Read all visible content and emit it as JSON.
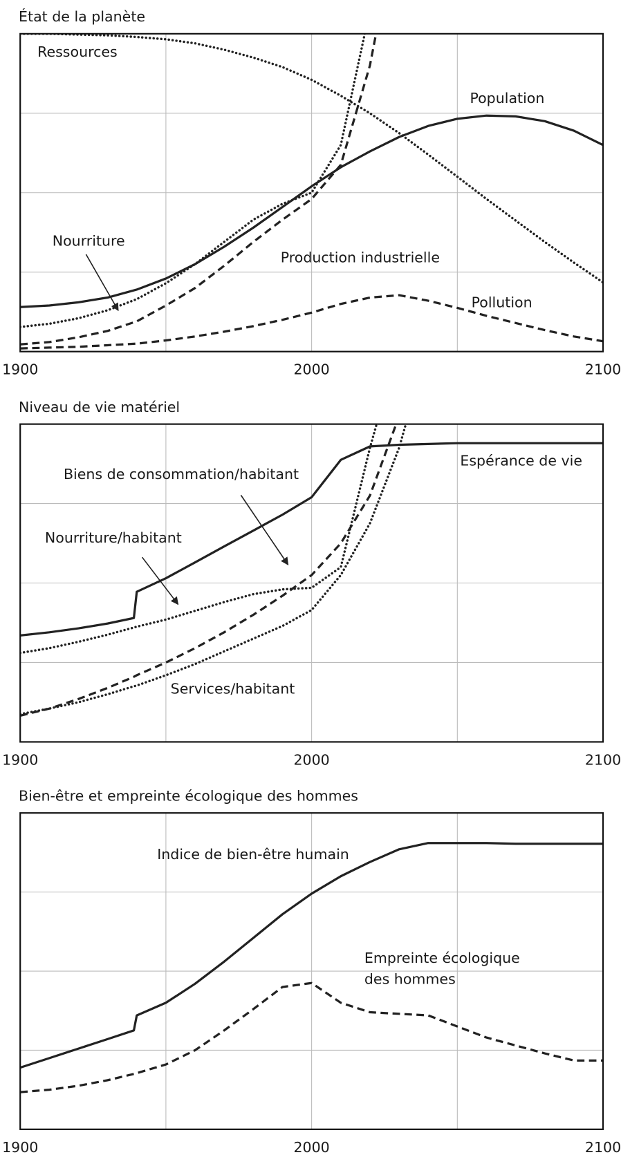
{
  "chart_data": [
    {
      "type": "line",
      "title": "État de la planète",
      "x": [
        1900,
        1910,
        1920,
        1930,
        1940,
        1950,
        1960,
        1970,
        1980,
        1990,
        2000,
        2010,
        2020,
        2030,
        2040,
        2050,
        2060,
        2070,
        2080,
        2090,
        2100
      ],
      "xlim": [
        1900,
        2100
      ],
      "xticks": [
        1900,
        2000,
        2100
      ],
      "xgrid": [
        1950,
        2050
      ],
      "ylim": [
        0,
        4
      ],
      "ygrid": [
        1,
        2,
        3
      ],
      "annotations": [
        "Ressources",
        "Population",
        "Nourriture",
        "Production industrielle",
        "Pollution"
      ],
      "series": [
        {
          "name": "Ressources",
          "color": "#222",
          "style": "dotted",
          "values": [
            4.0,
            4.0,
            3.99,
            3.98,
            3.96,
            3.93,
            3.88,
            3.8,
            3.7,
            3.58,
            3.42,
            3.22,
            3.0,
            2.75,
            2.48,
            2.2,
            1.92,
            1.65,
            1.38,
            1.12,
            0.87
          ]
        },
        {
          "name": "Population",
          "color": "#222",
          "style": "solid",
          "values": [
            0.56,
            0.58,
            0.62,
            0.68,
            0.78,
            0.92,
            1.1,
            1.32,
            1.56,
            1.82,
            2.08,
            2.32,
            2.52,
            2.7,
            2.84,
            2.93,
            2.97,
            2.96,
            2.9,
            2.78,
            2.6
          ]
        },
        {
          "name": "Nourriture",
          "color": "#222",
          "style": "dotted",
          "values": [
            0.31,
            0.35,
            0.42,
            0.52,
            0.66,
            0.86,
            1.1,
            1.38,
            1.66,
            1.86,
            2.0,
            2.6,
            4.3,
            null,
            null,
            null,
            null,
            null,
            null,
            null,
            null
          ]
        },
        {
          "name": "Production industrielle",
          "color": "#222",
          "style": "dashed",
          "values": [
            0.09,
            0.12,
            0.18,
            0.26,
            0.38,
            0.58,
            0.8,
            1.08,
            1.38,
            1.66,
            1.92,
            2.35,
            3.6,
            5.5,
            null,
            null,
            null,
            null,
            null,
            null,
            null
          ]
        },
        {
          "name": "Pollution",
          "color": "#222",
          "style": "dashed",
          "values": [
            0.04,
            0.05,
            0.06,
            0.08,
            0.1,
            0.14,
            0.19,
            0.25,
            0.32,
            0.4,
            0.49,
            0.6,
            0.68,
            0.71,
            0.64,
            0.55,
            0.45,
            0.36,
            0.27,
            0.19,
            0.13
          ]
        }
      ]
    },
    {
      "type": "line",
      "title": "Niveau de vie matériel",
      "x": [
        1900,
        1910,
        1920,
        1930,
        1939,
        1940,
        1950,
        1960,
        1970,
        1980,
        1990,
        2000,
        2010,
        2020,
        2030,
        2040,
        2050,
        2060,
        2070,
        2080,
        2090,
        2100
      ],
      "xlim": [
        1900,
        2100
      ],
      "xticks": [
        1900,
        2000,
        2100
      ],
      "xgrid": [
        1950,
        2050
      ],
      "ylim": [
        0,
        4
      ],
      "ygrid": [
        1,
        2,
        3
      ],
      "annotations": [
        "Biens de consommation/habitant",
        "Espérance de vie",
        "Nourriture/habitant",
        "Services/habitant"
      ],
      "series": [
        {
          "name": "Espérance de vie",
          "color": "#222",
          "style": "solid",
          "values": [
            1.34,
            1.38,
            1.43,
            1.49,
            1.56,
            1.89,
            2.06,
            2.26,
            2.46,
            2.66,
            2.86,
            3.08,
            3.55,
            3.72,
            3.74,
            3.75,
            3.76,
            3.76,
            3.76,
            3.76,
            3.76,
            3.76
          ]
        },
        {
          "name": "Nourriture/habitant",
          "color": "#222",
          "style": "dotted",
          "values": [
            1.12,
            1.18,
            1.26,
            1.35,
            1.44,
            1.45,
            1.54,
            1.65,
            1.76,
            1.86,
            1.92,
            1.94,
            2.2,
            3.7,
            5.0,
            null,
            null,
            null,
            null,
            null,
            null,
            null
          ]
        },
        {
          "name": "Biens de consommation/habitant",
          "color": "#222",
          "style": "dashed",
          "values": [
            0.33,
            0.42,
            0.54,
            0.68,
            0.82,
            0.84,
            1.0,
            1.18,
            1.38,
            1.6,
            1.84,
            2.1,
            2.5,
            3.1,
            4.1,
            null,
            null,
            null,
            null,
            null,
            null,
            null
          ]
        },
        {
          "name": "Services/habitant",
          "color": "#222",
          "style": "dotted",
          "values": [
            0.35,
            0.42,
            0.5,
            0.6,
            0.7,
            0.71,
            0.84,
            0.98,
            1.14,
            1.3,
            1.46,
            1.66,
            2.1,
            2.75,
            3.7,
            5.0,
            null,
            null,
            null,
            null,
            null,
            null
          ]
        }
      ]
    },
    {
      "type": "line",
      "title": "Bien-être et empreinte écologique des hommes",
      "x": [
        1900,
        1910,
        1920,
        1930,
        1939,
        1940,
        1950,
        1960,
        1970,
        1980,
        1990,
        2000,
        2010,
        2020,
        2030,
        2040,
        2050,
        2060,
        2070,
        2080,
        2090,
        2100
      ],
      "xlim": [
        1900,
        2100
      ],
      "xticks": [
        1900,
        2000,
        2100
      ],
      "xgrid": [
        1950,
        2050
      ],
      "ylim": [
        0,
        4
      ],
      "ygrid": [
        1,
        2,
        3
      ],
      "annotations": [
        "Indice de bien-être humain",
        "Empreinte écologique",
        "des hommes"
      ],
      "series": [
        {
          "name": "Indice de bien-être humain",
          "color": "#222",
          "style": "solid",
          "values": [
            0.78,
            0.9,
            1.02,
            1.14,
            1.25,
            1.44,
            1.6,
            1.84,
            2.12,
            2.42,
            2.72,
            2.98,
            3.2,
            3.38,
            3.54,
            3.62,
            3.62,
            3.62,
            3.61,
            3.61,
            3.61,
            3.61
          ]
        },
        {
          "name": "Empreinte écologique des hommes",
          "color": "#222",
          "style": "dashed",
          "values": [
            0.47,
            0.5,
            0.55,
            0.62,
            0.7,
            0.71,
            0.82,
            1.0,
            1.25,
            1.52,
            1.8,
            1.85,
            1.6,
            1.48,
            1.46,
            1.44,
            1.3,
            1.16,
            1.06,
            0.96,
            0.87,
            0.87
          ]
        }
      ]
    }
  ]
}
